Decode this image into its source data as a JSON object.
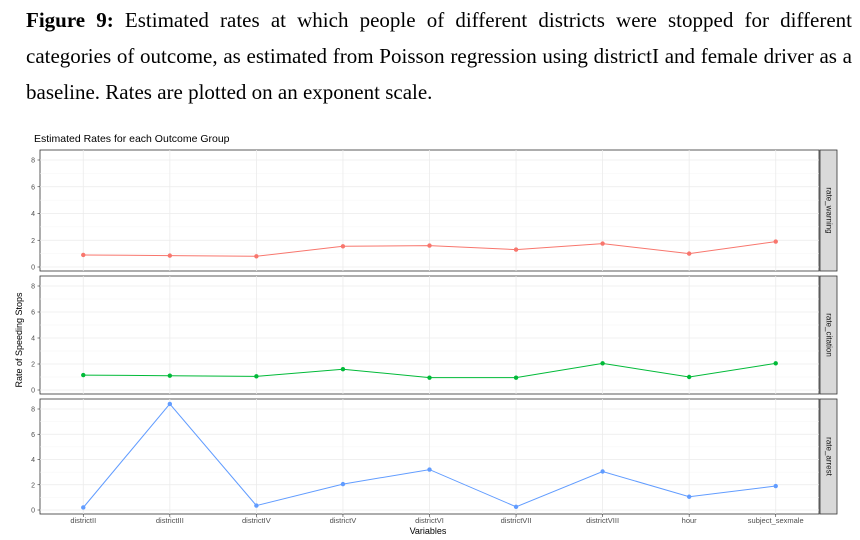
{
  "caption": {
    "label": "Figure 9:",
    "text": "Estimated rates at which people of different districts were stopped for different categories of outcome, as estimated from Poisson regression using districtI and female driver as a baseline. Rates are plotted on an exponent scale."
  },
  "chart_data": {
    "type": "line",
    "title": "Estimated Rates for each Outcome Group",
    "xlabel": "Variables",
    "ylabel": "Rate of Speeding Stops",
    "categories": [
      "districtII",
      "districtIII",
      "districtIV",
      "districtV",
      "districtVI",
      "districtVII",
      "districtVIII",
      "hour",
      "subject_sexmale"
    ],
    "ylim": [
      0,
      8
    ],
    "yticks": [
      "0",
      "2",
      "4",
      "6",
      "8"
    ],
    "grid": true,
    "facets": [
      {
        "name": "rate_warning",
        "color": "#F8766D",
        "values": [
          0.9,
          0.85,
          0.8,
          1.55,
          1.6,
          1.3,
          1.75,
          1.0,
          1.9
        ]
      },
      {
        "name": "rate_citation",
        "color": "#00BA38",
        "values": [
          1.15,
          1.1,
          1.05,
          1.6,
          0.95,
          0.95,
          2.05,
          1.0,
          2.05
        ]
      },
      {
        "name": "rate_arrest",
        "color": "#619CFF",
        "values": [
          0.2,
          8.4,
          0.35,
          2.05,
          3.2,
          0.25,
          3.05,
          1.05,
          1.9
        ]
      }
    ]
  }
}
